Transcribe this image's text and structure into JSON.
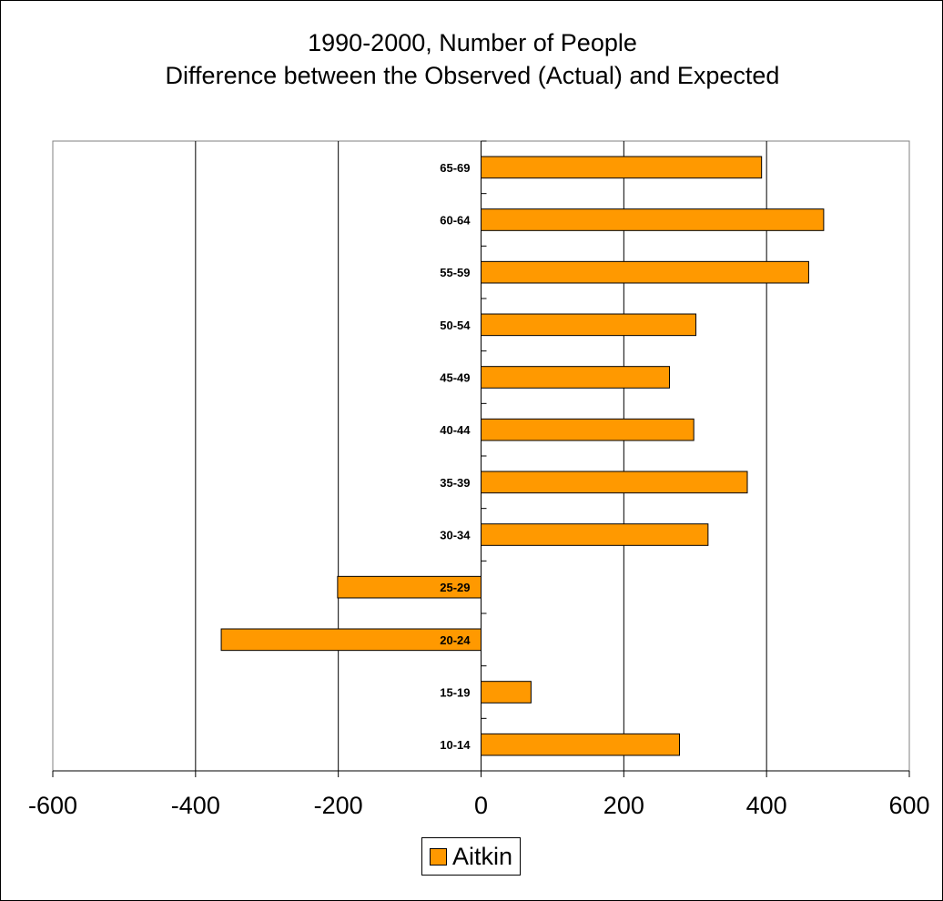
{
  "chart_data": {
    "type": "bar",
    "orientation": "horizontal",
    "title": [
      "1990-2000, Number of People",
      "Difference between the Observed (Actual) and Expected"
    ],
    "categories": [
      "10-14",
      "15-19",
      "20-24",
      "25-29",
      "30-34",
      "35-39",
      "40-44",
      "45-49",
      "50-54",
      "55-59",
      "60-64",
      "65-69"
    ],
    "series": [
      {
        "name": "Aitkin",
        "color": "#ff9900",
        "values": [
          278,
          70,
          -364,
          -201,
          318,
          373,
          298,
          264,
          301,
          459,
          480,
          393
        ]
      }
    ],
    "xlim": [
      -600,
      600
    ],
    "xticks": [
      -600,
      -400,
      -200,
      0,
      200,
      400,
      600
    ],
    "grid": true,
    "legend_position": "bottom"
  }
}
